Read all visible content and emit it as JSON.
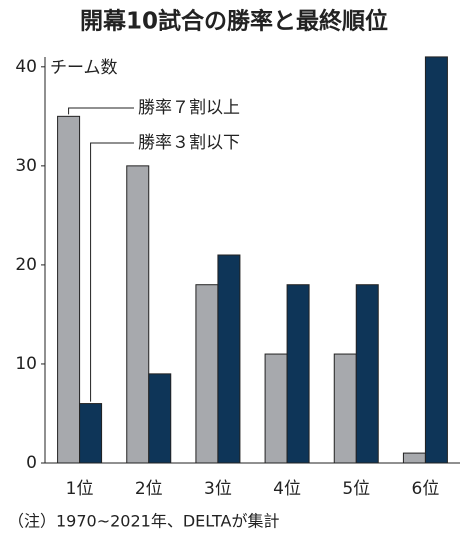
{
  "chart_data": {
    "type": "bar",
    "title": "開幕10試合の勝率と最終順位",
    "y_label": "チーム数",
    "note": "（注）1970~2021年、DELTAが集計",
    "categories": [
      "1位",
      "2位",
      "3位",
      "4位",
      "5位",
      "6位"
    ],
    "series": [
      {
        "name": "勝率７割以上",
        "color": "#a7a9ad",
        "values": [
          35,
          30,
          18,
          11,
          11,
          1
        ]
      },
      {
        "name": "勝率３割以下",
        "color": "#0e3558",
        "values": [
          6,
          9,
          21,
          18,
          18,
          41
        ]
      }
    ],
    "ylim": [
      0,
      42
    ],
    "yticks": [
      0,
      10,
      20,
      30,
      40
    ]
  }
}
